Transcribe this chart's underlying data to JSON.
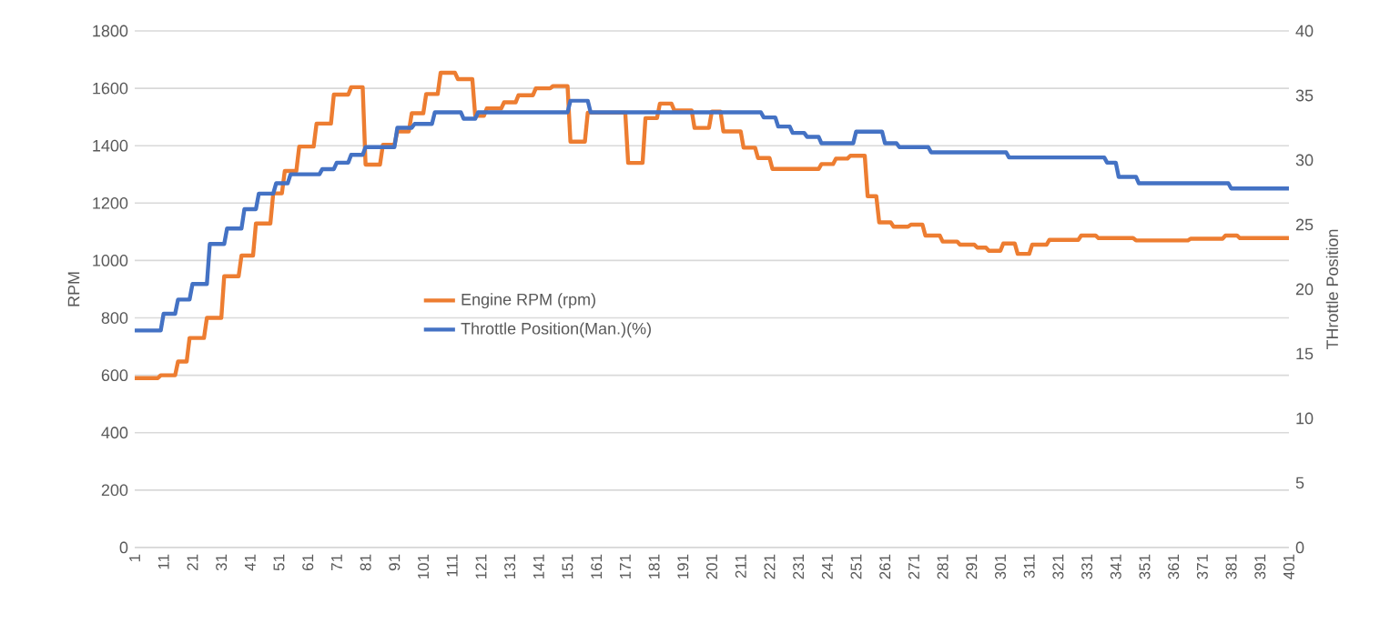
{
  "chart_data": {
    "type": "line",
    "ylabel": "RPM",
    "y2label": "THrottle Position",
    "xlim": [
      1,
      401
    ],
    "xticks": [
      1,
      11,
      21,
      31,
      41,
      51,
      61,
      71,
      81,
      91,
      101,
      111,
      121,
      131,
      141,
      151,
      161,
      171,
      181,
      191,
      201,
      211,
      221,
      231,
      241,
      251,
      261,
      271,
      281,
      291,
      301,
      311,
      321,
      331,
      341,
      351,
      361,
      371,
      381,
      391,
      401
    ],
    "ylim": [
      0,
      1800
    ],
    "yticks": [
      0,
      200,
      400,
      600,
      800,
      1000,
      1200,
      1400,
      1600,
      1800
    ],
    "y2lim": [
      0,
      40
    ],
    "y2ticks": [
      0,
      5,
      10,
      15,
      20,
      25,
      30,
      35,
      40
    ],
    "grid": "y",
    "legend": "center",
    "series": [
      {
        "name": "Engine RPM (rpm)",
        "color": "#ed7d31",
        "x": [
          1,
          9,
          10,
          15,
          16,
          19,
          20,
          25,
          26,
          31,
          32,
          37,
          38,
          42,
          43,
          48,
          49,
          52,
          53,
          57,
          58,
          63,
          64,
          69,
          70,
          75,
          76,
          80,
          81,
          86,
          87,
          91,
          92,
          96,
          97,
          101,
          102,
          106,
          107,
          112,
          113,
          118,
          119,
          122,
          123,
          128,
          129,
          133,
          134,
          139,
          140,
          145,
          146,
          151,
          152,
          157,
          158,
          171,
          172,
          177,
          178,
          182,
          183,
          187,
          188,
          194,
          195,
          200,
          201,
          204,
          205,
          211,
          212,
          216,
          217,
          221,
          222,
          238,
          239,
          243,
          244,
          248,
          249,
          254,
          255,
          258,
          259,
          263,
          264,
          269,
          270,
          274,
          275,
          280,
          281,
          286,
          287,
          292,
          293,
          296,
          297,
          301,
          302,
          306,
          307,
          311,
          312,
          317,
          318,
          328,
          329,
          334,
          335,
          347,
          348,
          366,
          367,
          378,
          379,
          383,
          384,
          401
        ],
        "values": [
          590,
          590,
          600,
          600,
          648,
          648,
          730,
          730,
          800,
          800,
          945,
          945,
          1017,
          1017,
          1129,
          1129,
          1234,
          1234,
          1312,
          1312,
          1397,
          1397,
          1477,
          1477,
          1578,
          1578,
          1604,
          1604,
          1334,
          1334,
          1403,
          1403,
          1450,
          1450,
          1513,
          1513,
          1580,
          1580,
          1654,
          1654,
          1632,
          1632,
          1504,
          1504,
          1530,
          1530,
          1551,
          1551,
          1576,
          1576,
          1600,
          1600,
          1608,
          1608,
          1414,
          1414,
          1515,
          1515,
          1340,
          1340,
          1496,
          1496,
          1547,
          1547,
          1523,
          1523,
          1462,
          1462,
          1519,
          1519,
          1450,
          1450,
          1393,
          1393,
          1357,
          1357,
          1319,
          1319,
          1336,
          1336,
          1355,
          1355,
          1365,
          1365,
          1224,
          1224,
          1133,
          1133,
          1118,
          1118,
          1125,
          1125,
          1087,
          1087,
          1066,
          1066,
          1055,
          1055,
          1045,
          1045,
          1034,
          1034,
          1059,
          1059,
          1023,
          1023,
          1055,
          1055,
          1072,
          1072,
          1087,
          1087,
          1078,
          1078,
          1070,
          1070,
          1076,
          1076,
          1087,
          1087,
          1078,
          1078
        ]
      },
      {
        "name": "Throttle Position(Man.)(%)",
        "color": "#4472c4",
        "axis": "y2",
        "x": [
          1,
          10,
          11,
          15,
          16,
          20,
          21,
          26,
          27,
          32,
          33,
          38,
          39,
          43,
          44,
          49,
          50,
          54,
          55,
          65,
          66,
          70,
          71,
          75,
          76,
          80,
          81,
          91,
          92,
          97,
          98,
          104,
          105,
          114,
          115,
          119,
          120,
          151,
          152,
          158,
          159,
          218,
          219,
          223,
          224,
          228,
          229,
          233,
          234,
          238,
          239,
          250,
          251,
          260,
          261,
          265,
          266,
          276,
          277,
          303,
          304,
          337,
          338,
          341,
          342,
          348,
          349,
          380,
          381,
          401
        ],
        "values": [
          16.8,
          16.8,
          18.1,
          18.1,
          19.2,
          19.2,
          20.4,
          20.4,
          23.5,
          23.5,
          24.7,
          24.7,
          26.2,
          26.2,
          27.4,
          27.4,
          28.2,
          28.2,
          28.9,
          28.9,
          29.3,
          29.3,
          29.8,
          29.8,
          30.4,
          30.4,
          31.0,
          31.0,
          32.5,
          32.5,
          32.8,
          32.8,
          33.7,
          33.7,
          33.2,
          33.2,
          33.7,
          33.7,
          34.6,
          34.6,
          33.7,
          33.7,
          33.3,
          33.3,
          32.6,
          32.6,
          32.1,
          32.1,
          31.8,
          31.8,
          31.3,
          31.3,
          32.2,
          32.2,
          31.3,
          31.3,
          31.0,
          31.0,
          30.6,
          30.6,
          30.2,
          30.2,
          29.8,
          29.8,
          28.7,
          28.7,
          28.2,
          28.2,
          27.8,
          27.8
        ]
      }
    ]
  }
}
